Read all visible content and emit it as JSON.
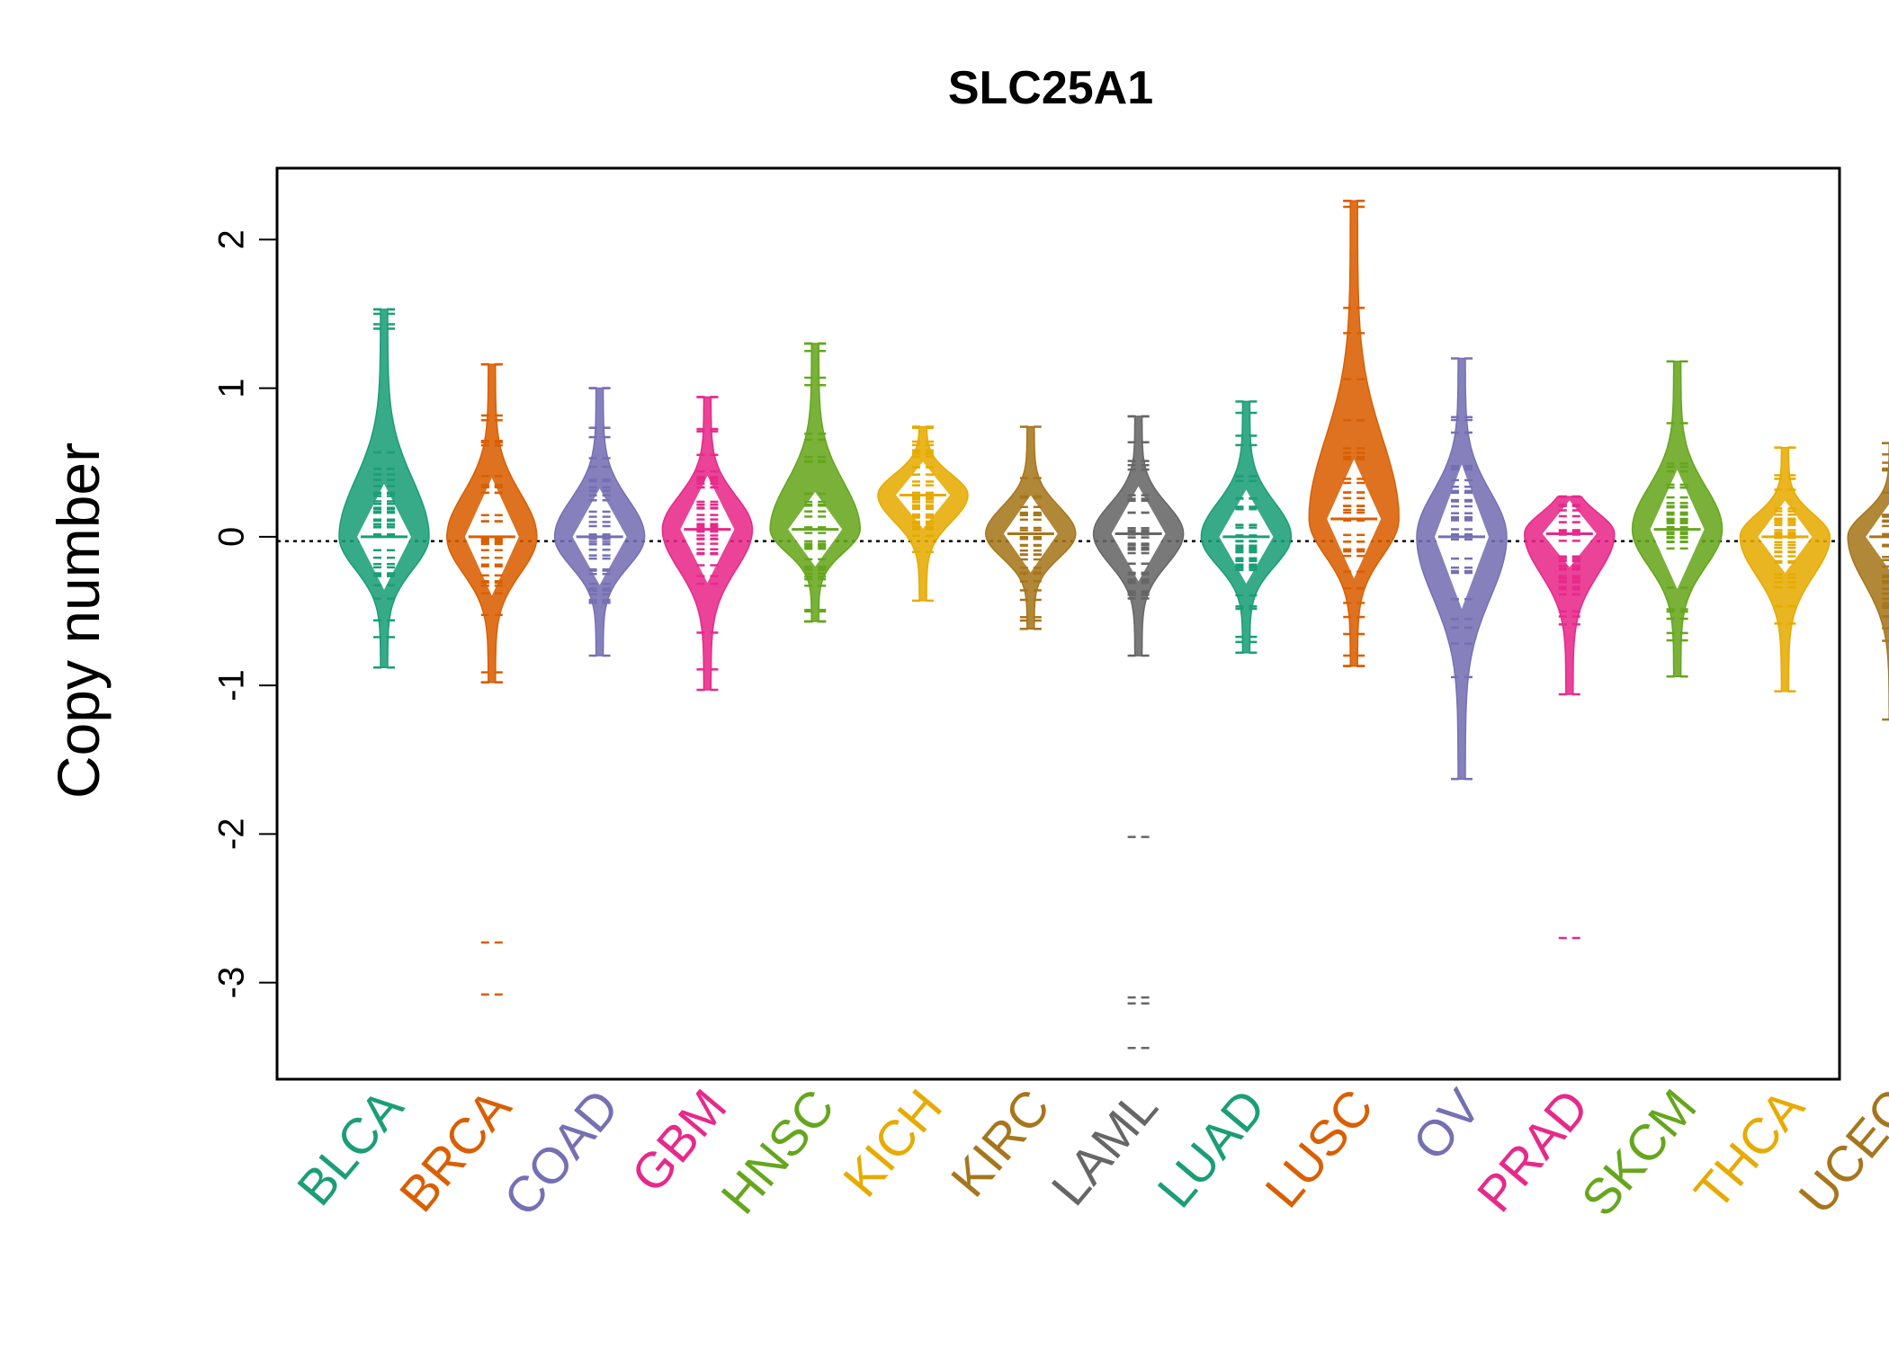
{
  "chart_data": {
    "type": "beanplot",
    "title": "SLC25A1",
    "ylabel": "Copy number",
    "xlabel": "",
    "ylim": [
      -3.65,
      2.48
    ],
    "yticks": [
      -3,
      -2,
      -1,
      0,
      1,
      2
    ],
    "reference_line": -0.03,
    "grid": false,
    "legend": "none",
    "categories": [
      {
        "name": "BLCA",
        "color": "#1b9e77",
        "center": 0.0,
        "min": -0.88,
        "max": 1.53,
        "outliers": [
          1.53,
          1.5,
          1.43,
          1.4
        ]
      },
      {
        "name": "BRCA",
        "color": "#d95f02",
        "center": 0.0,
        "min": -0.98,
        "max": 1.16,
        "outliers": [
          1.16,
          -2.73,
          -3.08
        ]
      },
      {
        "name": "COAD",
        "color": "#7570b3",
        "center": 0.0,
        "min": -0.8,
        "max": 1.0,
        "outliers": [
          1.0,
          0.67
        ]
      },
      {
        "name": "GBM",
        "color": "#e7298a",
        "center": 0.05,
        "min": -1.03,
        "max": 0.94,
        "outliers": [
          0.94
        ]
      },
      {
        "name": "HNSC",
        "color": "#66a61e",
        "center": 0.05,
        "min": -0.57,
        "max": 1.3,
        "outliers": [
          1.3,
          1.25,
          1.07,
          1.02
        ]
      },
      {
        "name": "KICH",
        "color": "#e6ab02",
        "center": 0.28,
        "min": -0.43,
        "max": 0.74,
        "outliers": [
          0.74
        ]
      },
      {
        "name": "KIRC",
        "color": "#a6761d",
        "center": 0.02,
        "min": -0.62,
        "max": 0.74,
        "outliers": []
      },
      {
        "name": "LAML",
        "color": "#666666",
        "center": 0.02,
        "min": -0.8,
        "max": 0.81,
        "outliers": [
          0.81,
          -2.02,
          -3.1,
          -3.14,
          -3.44
        ]
      },
      {
        "name": "LUAD",
        "color": "#1b9e77",
        "center": 0.0,
        "min": -0.78,
        "max": 0.91,
        "outliers": []
      },
      {
        "name": "LUSC",
        "color": "#d95f02",
        "center": 0.12,
        "min": -0.87,
        "max": 2.26,
        "outliers": [
          2.26,
          2.22,
          1.54
        ]
      },
      {
        "name": "OV",
        "color": "#7570b3",
        "center": 0.0,
        "min": -1.63,
        "max": 1.2,
        "outliers": []
      },
      {
        "name": "PRAD",
        "color": "#e7298a",
        "center": 0.02,
        "min": -1.06,
        "max": 0.27,
        "outliers": [
          -2.7
        ]
      },
      {
        "name": "SKCM",
        "color": "#66a61e",
        "center": 0.05,
        "min": -0.94,
        "max": 1.18,
        "outliers": []
      },
      {
        "name": "THCA",
        "color": "#e6ab02",
        "center": 0.0,
        "min": -1.04,
        "max": 0.6,
        "outliers": []
      },
      {
        "name": "UCEC",
        "color": "#a6761d",
        "center": 0.0,
        "min": -1.23,
        "max": 0.63,
        "outliers": []
      }
    ]
  }
}
